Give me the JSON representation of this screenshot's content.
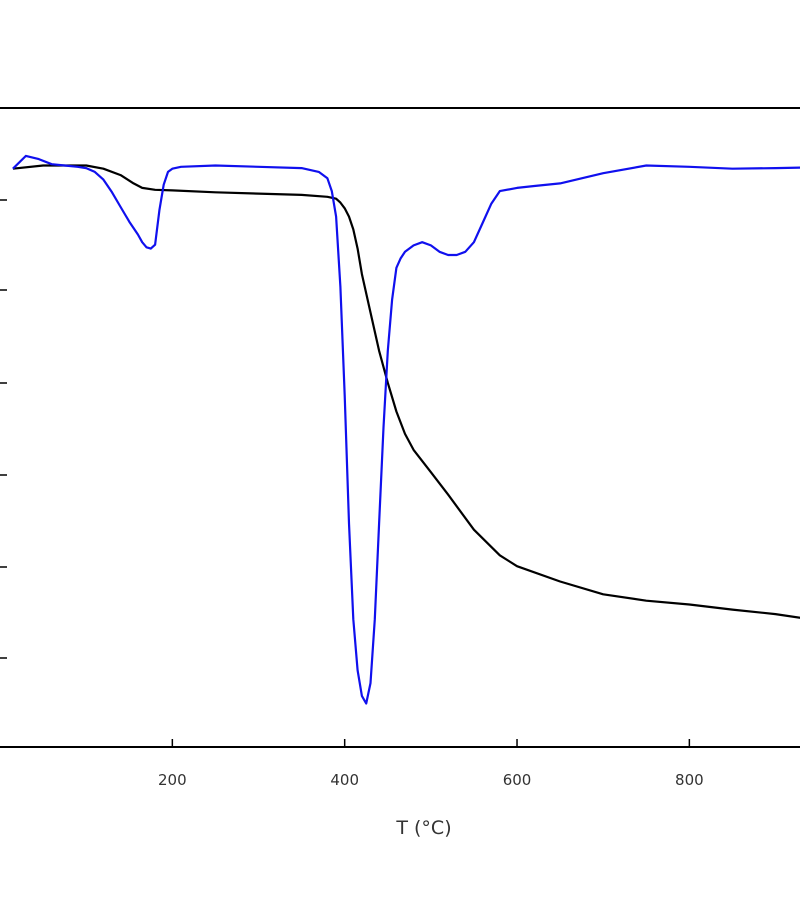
{
  "chart_data": {
    "type": "line",
    "xlabel": "T (°C)",
    "xlim": [
      0,
      940
    ],
    "ylim": [
      0,
      1
    ],
    "x_ticks": [
      200,
      400,
      600,
      800
    ],
    "x_tick_labels": [
      "200",
      "400",
      "600",
      "800"
    ],
    "grid": false,
    "colors": {
      "tga": "#000000",
      "dtg": "#1010ee",
      "axis": "#000000"
    },
    "series": [
      {
        "key": "tga",
        "x": [
          15,
          50,
          100,
          120,
          140,
          155,
          165,
          180,
          200,
          250,
          300,
          350,
          380,
          390,
          395,
          400,
          405,
          410,
          415,
          420,
          430,
          440,
          450,
          460,
          470,
          480,
          500,
          520,
          550,
          580,
          600,
          650,
          700,
          750,
          800,
          850,
          900,
          940
        ],
        "y": [
          0.905,
          0.91,
          0.91,
          0.905,
          0.895,
          0.882,
          0.875,
          0.872,
          0.871,
          0.868,
          0.866,
          0.864,
          0.861,
          0.858,
          0.852,
          0.843,
          0.83,
          0.81,
          0.78,
          0.74,
          0.68,
          0.62,
          0.57,
          0.525,
          0.49,
          0.465,
          0.43,
          0.395,
          0.34,
          0.3,
          0.283,
          0.259,
          0.239,
          0.229,
          0.223,
          0.215,
          0.208,
          0.2
        ]
      },
      {
        "key": "dtg",
        "x": [
          15,
          30,
          45,
          60,
          75,
          90,
          100,
          110,
          120,
          130,
          140,
          150,
          160,
          165,
          170,
          175,
          180,
          185,
          190,
          195,
          200,
          210,
          250,
          300,
          350,
          370,
          380,
          385,
          390,
          395,
          400,
          405,
          410,
          415,
          420,
          425,
          430,
          435,
          440,
          445,
          450,
          455,
          460,
          465,
          470,
          480,
          490,
          500,
          510,
          520,
          530,
          540,
          550,
          560,
          570,
          580,
          600,
          620,
          650,
          700,
          750,
          800,
          850,
          900,
          940
        ],
        "y": [
          0.905,
          0.925,
          0.92,
          0.912,
          0.91,
          0.908,
          0.906,
          0.9,
          0.888,
          0.868,
          0.845,
          0.822,
          0.802,
          0.79,
          0.782,
          0.78,
          0.786,
          0.84,
          0.88,
          0.9,
          0.905,
          0.908,
          0.91,
          0.908,
          0.906,
          0.9,
          0.89,
          0.87,
          0.83,
          0.72,
          0.55,
          0.35,
          0.2,
          0.12,
          0.08,
          0.068,
          0.1,
          0.2,
          0.35,
          0.5,
          0.62,
          0.7,
          0.75,
          0.765,
          0.775,
          0.785,
          0.79,
          0.785,
          0.775,
          0.77,
          0.77,
          0.775,
          0.79,
          0.82,
          0.85,
          0.87,
          0.875,
          0.878,
          0.882,
          0.898,
          0.91,
          0.908,
          0.905,
          0.906,
          0.907
        ]
      }
    ]
  }
}
